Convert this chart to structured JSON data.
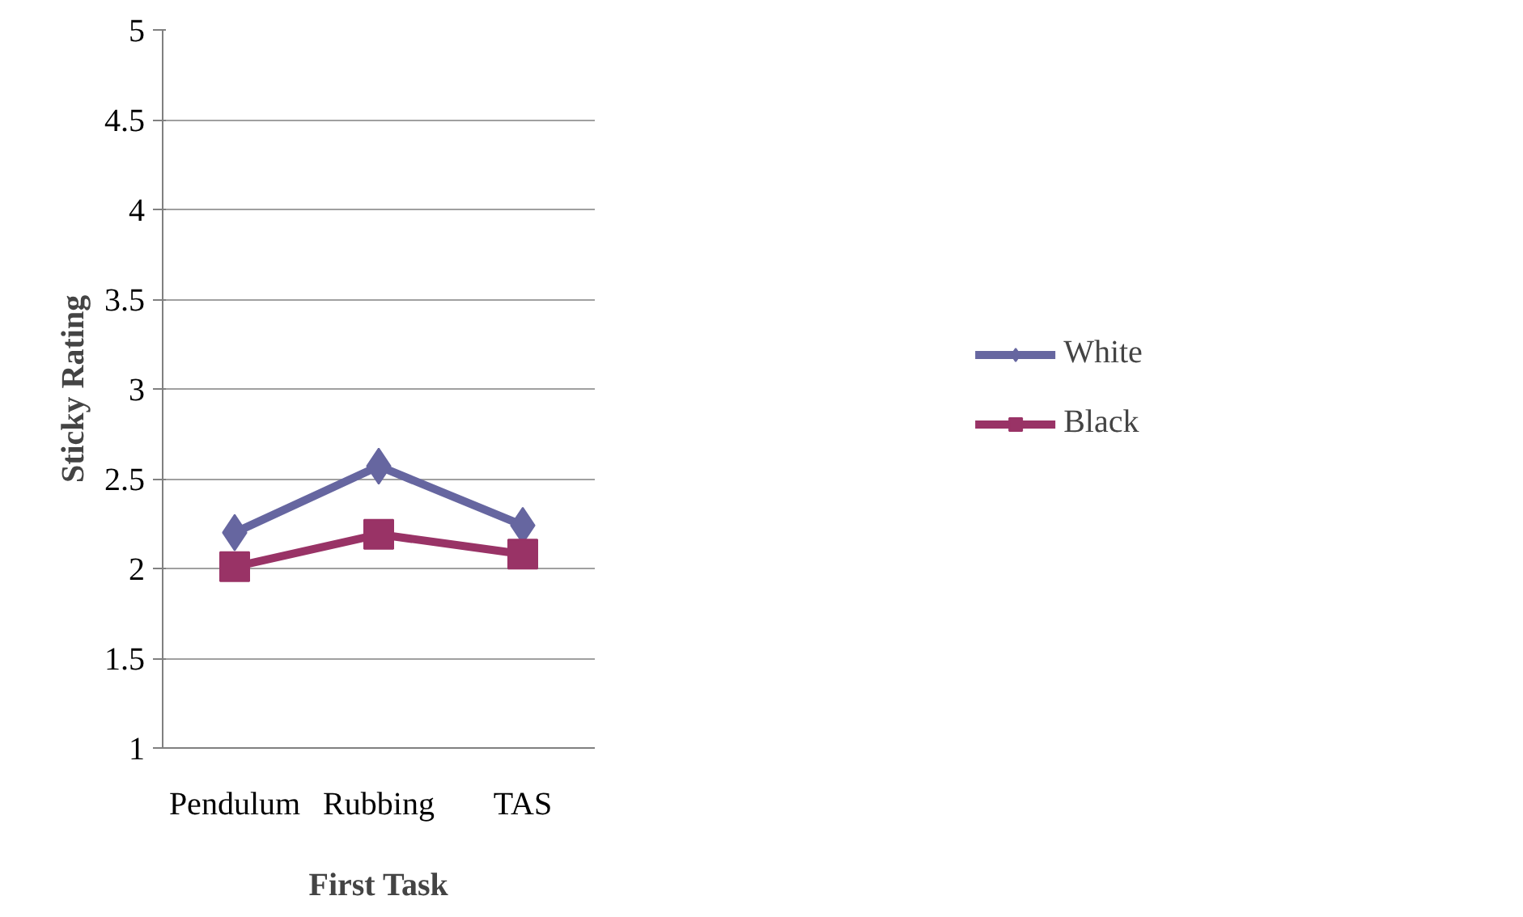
{
  "chart_data": {
    "type": "line",
    "xlabel": "First Task",
    "ylabel": "Sticky Rating",
    "categories": [
      "Pendulum",
      "Rubbing",
      "TAS"
    ],
    "series": [
      {
        "name": "White",
        "color": "#6666a0",
        "marker": "diamond",
        "values": [
          2.2,
          2.57,
          2.24
        ]
      },
      {
        "name": "Black",
        "color": "#993366",
        "marker": "square",
        "values": [
          2.01,
          2.19,
          2.08
        ]
      }
    ],
    "ylim": [
      1,
      5
    ],
    "yticks": [
      1,
      1.5,
      2,
      2.5,
      3,
      3.5,
      4,
      4.5,
      5
    ],
    "grid": "y",
    "legend": "right"
  }
}
